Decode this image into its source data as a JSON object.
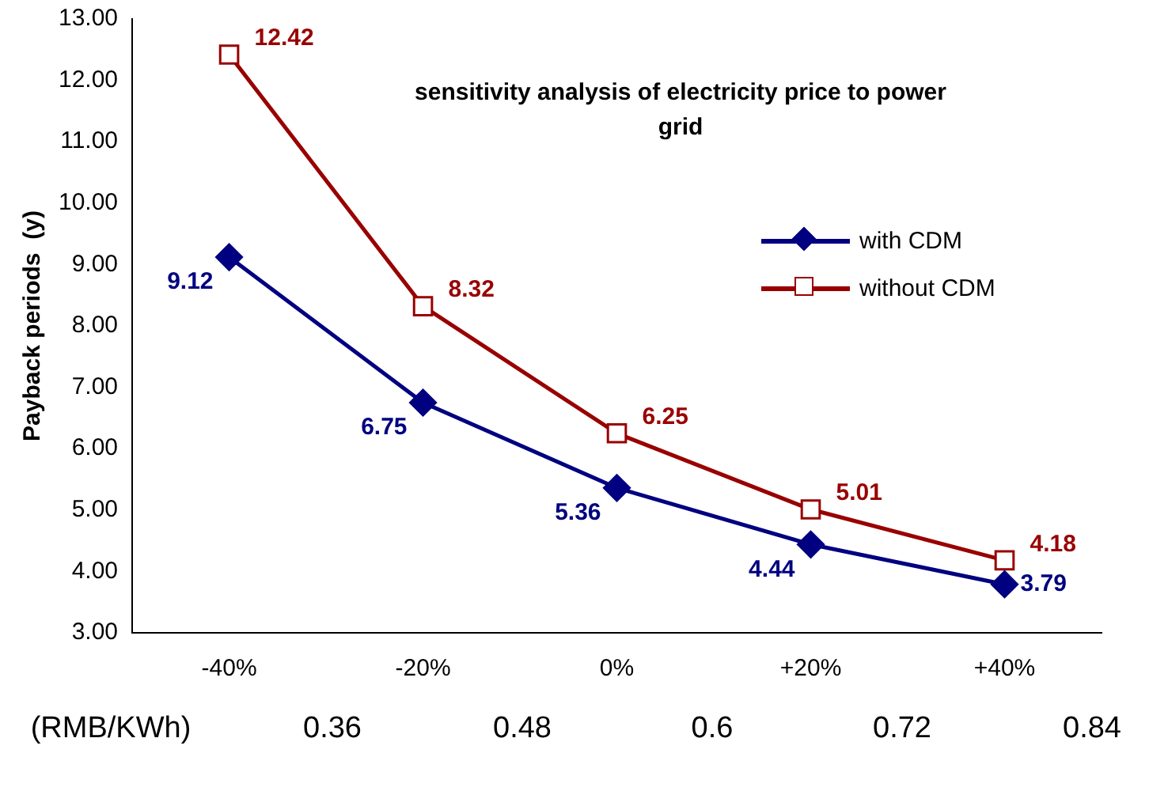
{
  "chart_data": {
    "type": "line",
    "title": "sensitivity analysis of electricity price to power grid",
    "ylabel": "Payback periods  (y)",
    "categories": [
      "-40%",
      "-20%",
      "0%",
      "+20%",
      "+40%"
    ],
    "series": [
      {
        "name": "with CDM",
        "color": "#000080",
        "marker": "diamond",
        "values": [
          9.12,
          6.75,
          5.36,
          4.44,
          3.79
        ]
      },
      {
        "name": "without CDM",
        "color": "#990000",
        "marker": "square",
        "values": [
          12.42,
          8.32,
          6.25,
          5.01,
          4.18
        ]
      }
    ],
    "ylim": [
      3,
      13
    ],
    "yticks": [
      {
        "value": 3,
        "label": "3.00"
      },
      {
        "value": 4,
        "label": "4.00"
      },
      {
        "value": 5,
        "label": "5.00"
      },
      {
        "value": 6,
        "label": "6.00"
      },
      {
        "value": 7,
        "label": "7.00"
      },
      {
        "value": 8,
        "label": "8.00"
      },
      {
        "value": 9,
        "label": "9.00"
      },
      {
        "value": 10,
        "label": "10.00"
      },
      {
        "value": 11,
        "label": "11.00"
      },
      {
        "value": 12,
        "label": "12.00"
      },
      {
        "value": 13,
        "label": "13.00"
      }
    ],
    "grid": false,
    "legend": "right",
    "data_labels": true,
    "annotations": [
      "(RMB/KWh)",
      "0.36",
      "0.48",
      "0.6",
      "0.72",
      "0.84"
    ]
  }
}
